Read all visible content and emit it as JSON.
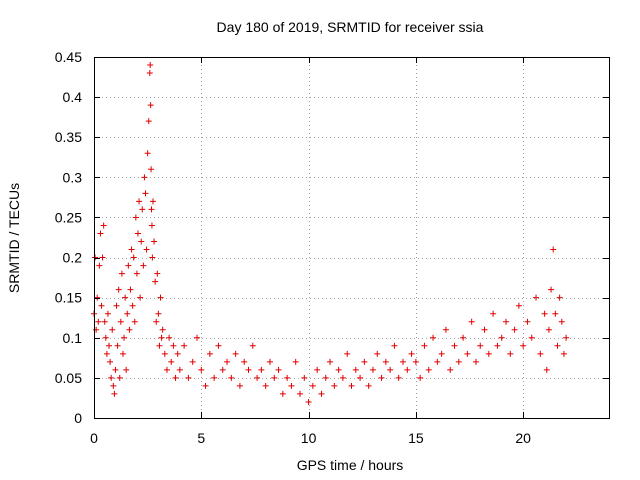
{
  "chart_data": {
    "type": "scatter",
    "title": "Day 180 of 2019, SRMTID for receiver ssia",
    "xlabel": "GPS time / hours",
    "ylabel": "SRMTID / TECUs",
    "xlim": [
      0,
      24
    ],
    "ylim": [
      0,
      0.45
    ],
    "xticks": [
      0,
      5,
      10,
      15,
      20
    ],
    "xtick_labels": [
      "0",
      "5",
      "10",
      "15",
      "20"
    ],
    "yticks": [
      0,
      0.05,
      0.1,
      0.15,
      0.2,
      0.25,
      0.3,
      0.35,
      0.4,
      0.45
    ],
    "ytick_labels": [
      "0",
      "0.05",
      "0.1",
      "0.15",
      "0.2",
      "0.25",
      "0.3",
      "0.35",
      "0.4",
      "0.45"
    ],
    "grid": true,
    "marker": "+",
    "marker_color": "#e00000",
    "series": [
      {
        "name": "SRMTID",
        "x": [
          0.0,
          0.05,
          0.1,
          0.15,
          0.2,
          0.25,
          0.3,
          0.35,
          0.4,
          0.45,
          0.5,
          0.55,
          0.6,
          0.65,
          0.7,
          0.75,
          0.8,
          0.85,
          0.9,
          0.95,
          1.0,
          1.05,
          1.1,
          1.15,
          1.2,
          1.25,
          1.3,
          1.35,
          1.4,
          1.45,
          1.5,
          1.55,
          1.6,
          1.65,
          1.7,
          1.75,
          1.8,
          1.85,
          1.9,
          1.95,
          2.0,
          2.05,
          2.1,
          2.15,
          2.2,
          2.25,
          2.3,
          2.35,
          2.4,
          2.45,
          2.5,
          2.55,
          2.6,
          2.62,
          2.64,
          2.66,
          2.68,
          2.7,
          2.72,
          2.75,
          2.8,
          2.85,
          2.9,
          2.95,
          3.0,
          3.05,
          3.1,
          3.15,
          3.2,
          3.3,
          3.4,
          3.5,
          3.6,
          3.7,
          3.8,
          3.9,
          4.0,
          4.2,
          4.4,
          4.6,
          4.8,
          5.0,
          5.2,
          5.4,
          5.6,
          5.8,
          6.0,
          6.2,
          6.4,
          6.6,
          6.8,
          7.0,
          7.2,
          7.4,
          7.6,
          7.8,
          8.0,
          8.2,
          8.4,
          8.6,
          8.8,
          9.0,
          9.2,
          9.4,
          9.6,
          9.8,
          10.0,
          10.2,
          10.4,
          10.6,
          10.8,
          11.0,
          11.2,
          11.4,
          11.6,
          11.8,
          12.0,
          12.2,
          12.4,
          12.6,
          12.8,
          13.0,
          13.2,
          13.4,
          13.6,
          13.8,
          14.0,
          14.2,
          14.4,
          14.6,
          14.8,
          15.0,
          15.2,
          15.4,
          15.6,
          15.8,
          16.0,
          16.2,
          16.4,
          16.6,
          16.8,
          17.0,
          17.2,
          17.4,
          17.6,
          17.8,
          18.0,
          18.2,
          18.4,
          18.6,
          18.8,
          19.0,
          19.2,
          19.4,
          19.6,
          19.8,
          20.0,
          20.2,
          20.4,
          20.6,
          20.8,
          21.0,
          21.1,
          21.2,
          21.3,
          21.4,
          21.5,
          21.6,
          21.7,
          21.8,
          21.9,
          22.0
        ],
        "y": [
          0.13,
          0.2,
          0.11,
          0.15,
          0.12,
          0.19,
          0.23,
          0.14,
          0.2,
          0.24,
          0.12,
          0.1,
          0.08,
          0.13,
          0.09,
          0.07,
          0.05,
          0.11,
          0.04,
          0.03,
          0.06,
          0.14,
          0.09,
          0.16,
          0.05,
          0.12,
          0.18,
          0.08,
          0.1,
          0.15,
          0.06,
          0.13,
          0.19,
          0.11,
          0.16,
          0.21,
          0.14,
          0.2,
          0.12,
          0.25,
          0.18,
          0.23,
          0.27,
          0.15,
          0.22,
          0.26,
          0.19,
          0.3,
          0.28,
          0.21,
          0.33,
          0.37,
          0.43,
          0.44,
          0.39,
          0.31,
          0.26,
          0.24,
          0.2,
          0.27,
          0.22,
          0.17,
          0.12,
          0.18,
          0.13,
          0.09,
          0.15,
          0.1,
          0.11,
          0.08,
          0.06,
          0.1,
          0.07,
          0.09,
          0.05,
          0.08,
          0.06,
          0.09,
          0.05,
          0.07,
          0.1,
          0.06,
          0.04,
          0.08,
          0.05,
          0.09,
          0.06,
          0.07,
          0.05,
          0.08,
          0.04,
          0.07,
          0.06,
          0.09,
          0.05,
          0.06,
          0.04,
          0.07,
          0.05,
          0.06,
          0.03,
          0.05,
          0.04,
          0.07,
          0.03,
          0.05,
          0.02,
          0.04,
          0.06,
          0.03,
          0.05,
          0.07,
          0.04,
          0.06,
          0.05,
          0.08,
          0.04,
          0.06,
          0.05,
          0.07,
          0.04,
          0.06,
          0.08,
          0.05,
          0.07,
          0.06,
          0.09,
          0.05,
          0.07,
          0.06,
          0.08,
          0.07,
          0.05,
          0.09,
          0.06,
          0.1,
          0.07,
          0.08,
          0.11,
          0.06,
          0.09,
          0.07,
          0.1,
          0.08,
          0.12,
          0.07,
          0.09,
          0.11,
          0.08,
          0.13,
          0.09,
          0.1,
          0.12,
          0.08,
          0.11,
          0.14,
          0.09,
          0.12,
          0.1,
          0.15,
          0.08,
          0.13,
          0.06,
          0.11,
          0.16,
          0.21,
          0.13,
          0.09,
          0.15,
          0.12,
          0.08,
          0.1
        ]
      }
    ]
  }
}
